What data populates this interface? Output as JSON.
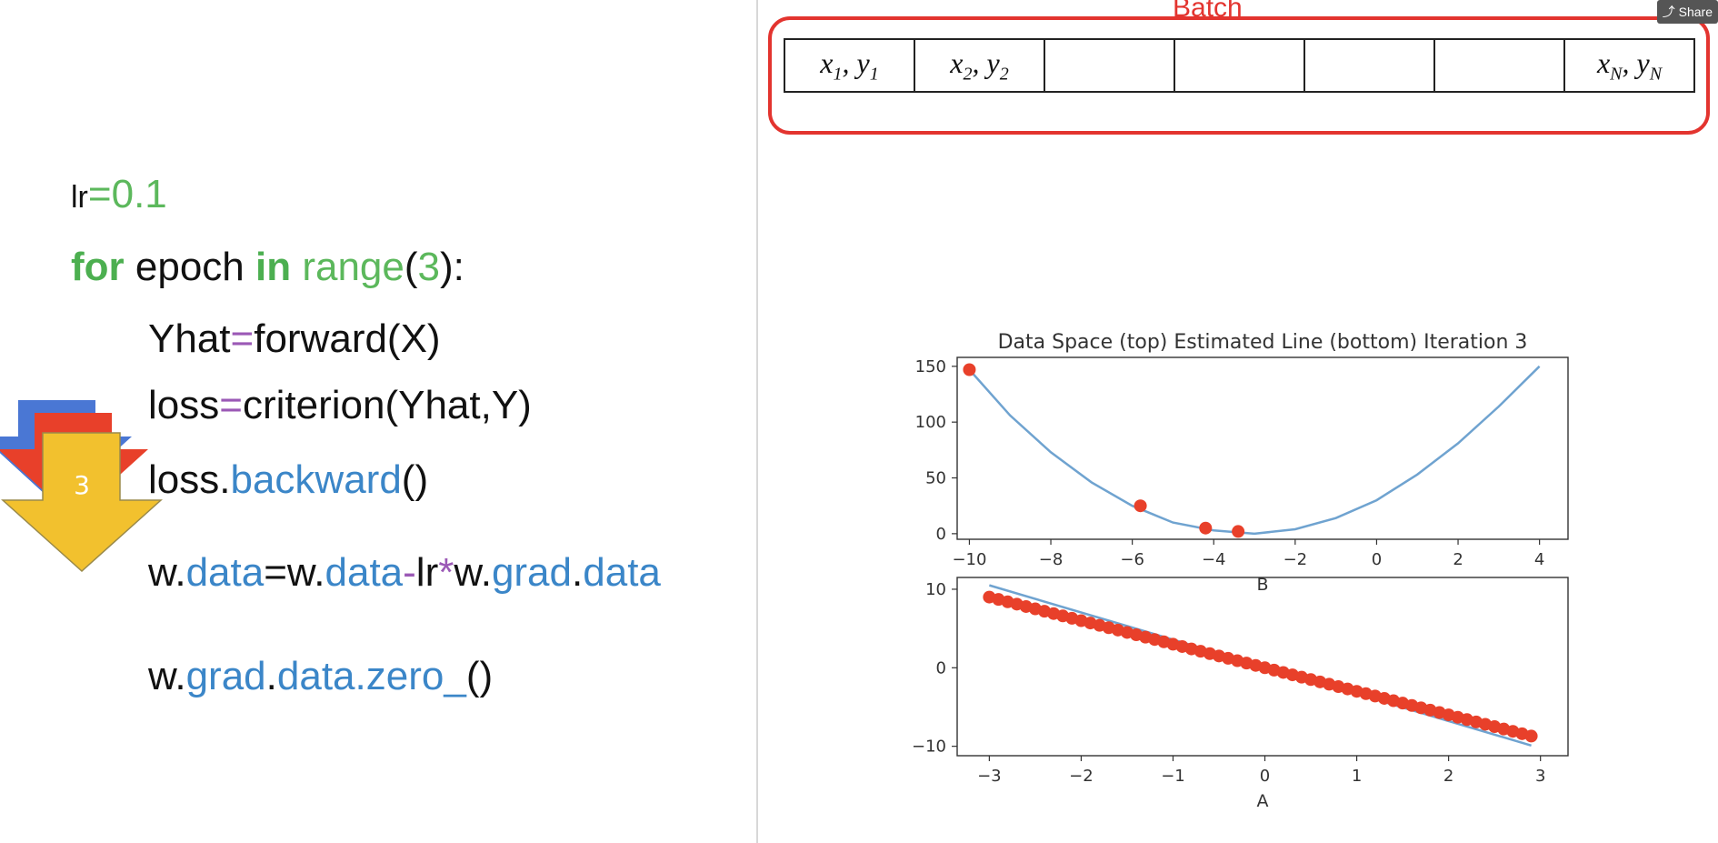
{
  "code": {
    "lr_label": "lr",
    "lr_eq": "=",
    "lr_value": "0.1",
    "for_kw": "for",
    "epoch_var": " epoch ",
    "in_kw": "in",
    "range_fn": " range",
    "range_open": "(",
    "range_arg": "3",
    "range_close": "):",
    "yhat_var": "Yhat",
    "eq": "=",
    "forward_call": "forward(X)",
    "loss_var": "loss",
    "criterion_call": "criterion(Yhat,Y)",
    "loss_obj": "loss.",
    "backward_fn": "backward",
    "backward_paren": "()",
    "w1": "w.",
    "data1": "data",
    "eq2": "=w.",
    "data2": "data",
    "minus": "-",
    "lr2": "lr",
    "star": "*",
    "w3": "w.",
    "grad1": "grad",
    "dot": ".",
    "data3": "data",
    "w4": "w.",
    "grad2": "grad",
    "dot2": ".",
    "zero_fn": "data.zero_",
    "zero_paren": "()"
  },
  "iteration_arrow": {
    "label": "3",
    "colors": [
      "#4a77d4",
      "#e8402a",
      "#f2c12e"
    ]
  },
  "batch": {
    "title": "Batch",
    "cells": [
      {
        "x": "x",
        "xs": "1",
        "y": "y",
        "ys": "1"
      },
      {
        "x": "x",
        "xs": "2",
        "y": "y",
        "ys": "2"
      },
      {
        "x": "",
        "xs": "",
        "y": "",
        "ys": ""
      },
      {
        "x": "",
        "xs": "",
        "y": "",
        "ys": ""
      },
      {
        "x": "",
        "xs": "",
        "y": "",
        "ys": ""
      },
      {
        "x": "",
        "xs": "",
        "y": "",
        "ys": ""
      },
      {
        "x": "x",
        "xs": "N",
        "y": "y",
        "ys": "N"
      }
    ]
  },
  "share_label": "Share",
  "chart_data": [
    {
      "type": "line",
      "title": "Data Space (top) Estimated Line (bottom) Iteration 3",
      "xlabel": "B",
      "ylabel": "",
      "xlim": [
        -10.3,
        4.7
      ],
      "ylim": [
        -5,
        158
      ],
      "xticks": [
        -10,
        -8,
        -6,
        -4,
        -2,
        0,
        2,
        4
      ],
      "yticks": [
        0,
        50,
        100,
        150
      ],
      "curve": {
        "x": [
          -10,
          -9,
          -8,
          -7,
          -6,
          -5,
          -4,
          -3,
          -2,
          -1,
          0,
          1,
          2,
          3,
          4
        ],
        "y": [
          147,
          106,
          73,
          46,
          25,
          10,
          3,
          0,
          4,
          14,
          30,
          53,
          81,
          114,
          150
        ],
        "color": "#6fa3d0"
      },
      "points": {
        "x": [
          -10,
          -5.8,
          -4.2,
          -3.4
        ],
        "y": [
          147,
          25,
          5,
          2
        ],
        "color": "#e8402a"
      }
    },
    {
      "type": "scatter",
      "title": "",
      "xlabel": "A",
      "ylabel": "",
      "xlim": [
        -3.35,
        3.3
      ],
      "ylim": [
        -11.2,
        11.5
      ],
      "xticks": [
        -3,
        -2,
        -1,
        0,
        1,
        2,
        3
      ],
      "yticks": [
        -10,
        0,
        10
      ],
      "line": {
        "x": [
          -3,
          2.9
        ],
        "y": [
          10.5,
          -9.9
        ],
        "color": "#6fa3d0"
      },
      "points": {
        "x_start": -3.0,
        "x_end": 2.9,
        "count": 60,
        "slope": -3.0,
        "intercept": 0.0,
        "color": "#e8402a"
      }
    }
  ]
}
